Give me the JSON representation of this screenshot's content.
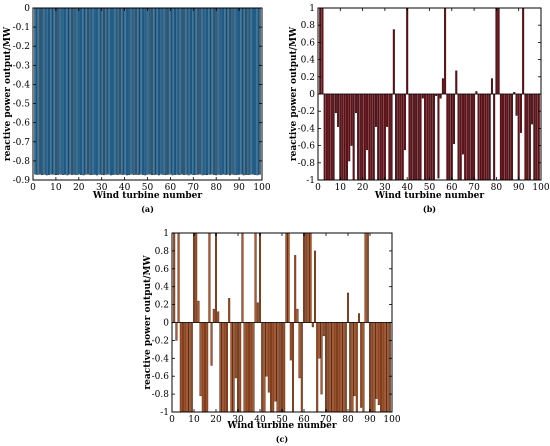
{
  "chart_data": [
    {
      "type": "bar",
      "panel_label": "(a)",
      "xlabel": "Wind turbine number",
      "ylabel": "reactive power output/MW",
      "xlim": [
        0,
        100
      ],
      "ylim": [
        -0.9,
        0
      ],
      "xticks": [
        0,
        10,
        20,
        30,
        40,
        50,
        60,
        70,
        80,
        90,
        100
      ],
      "yticks": [
        0,
        -0.1,
        -0.2,
        -0.3,
        -0.4,
        -0.5,
        -0.6,
        -0.7,
        -0.8,
        -0.9
      ],
      "bar_color": "#1f77b4",
      "bar_edge": "#000000",
      "x": [
        1,
        2,
        3,
        4,
        5,
        6,
        7,
        8,
        9,
        10,
        11,
        12,
        13,
        14,
        15,
        16,
        17,
        18,
        19,
        20,
        21,
        22,
        23,
        24,
        25,
        26,
        27,
        28,
        29,
        30,
        31,
        32,
        33,
        34,
        35,
        36,
        37,
        38,
        39,
        40,
        41,
        42,
        43,
        44,
        45,
        46,
        47,
        48,
        49,
        50,
        51,
        52,
        53,
        54,
        55,
        56,
        57,
        58,
        59,
        60,
        61,
        62,
        63,
        64,
        65,
        66,
        67,
        68,
        69,
        70,
        71,
        72,
        73,
        74,
        75,
        76,
        77,
        78,
        79,
        80,
        81,
        82,
        83,
        84,
        85,
        86,
        87,
        88,
        89,
        90,
        91,
        92,
        93,
        94,
        95,
        96,
        97,
        98,
        99
      ],
      "values": [
        -0.87,
        -0.872,
        -0.87,
        -0.873,
        -0.871,
        -0.874,
        -0.872,
        -0.87,
        -0.871,
        -0.873,
        -0.872,
        -0.87,
        -0.873,
        -0.871,
        -0.874,
        -0.87,
        -0.872,
        -0.871,
        -0.873,
        -0.87,
        -0.872,
        -0.874,
        -0.871,
        -0.87,
        -0.873,
        -0.872,
        -0.871,
        -0.874,
        -0.87,
        -0.872,
        -0.873,
        -0.871,
        -0.87,
        -0.874,
        -0.872,
        -0.871,
        -0.873,
        -0.87,
        -0.872,
        -0.871,
        -0.874,
        -0.873,
        -0.87,
        -0.872,
        -0.871,
        -0.873,
        -0.87,
        -0.872,
        -0.874,
        -0.871,
        -0.87,
        -0.873,
        -0.872,
        -0.871,
        -0.874,
        -0.87,
        -0.872,
        -0.873,
        -0.871,
        -0.87,
        -0.874,
        -0.872,
        -0.871,
        -0.873,
        -0.87,
        -0.872,
        -0.871,
        -0.874,
        -0.87,
        -0.873,
        -0.872,
        -0.871,
        -0.87,
        -0.874,
        -0.872,
        -0.873,
        -0.871,
        -0.87,
        -0.872,
        -0.874,
        -0.871,
        -0.873,
        -0.87,
        -0.872,
        -0.871,
        -0.874,
        -0.87,
        -0.873,
        -0.872,
        -0.871,
        -0.87,
        -0.874,
        -0.872,
        -0.873,
        -0.871,
        -0.87,
        -0.872,
        -0.874,
        -0.871
      ]
    },
    {
      "type": "bar",
      "panel_label": "(b)",
      "xlabel": "Wind turbine number",
      "ylabel": "reactive power output/MW",
      "xlim": [
        0,
        100
      ],
      "ylim": [
        -1,
        1
      ],
      "xticks": [
        0,
        10,
        20,
        30,
        40,
        50,
        60,
        70,
        80,
        90,
        100
      ],
      "yticks": [
        1,
        0.8,
        0.6,
        0.4,
        0.2,
        0,
        -0.2,
        -0.4,
        -0.6,
        -0.8,
        -1
      ],
      "bar_color": "#7a0a14",
      "bar_edge": "#000000",
      "x": [
        1,
        2,
        3,
        4,
        5,
        6,
        7,
        8,
        9,
        10,
        11,
        12,
        13,
        14,
        15,
        16,
        17,
        18,
        19,
        20,
        21,
        22,
        23,
        24,
        25,
        26,
        27,
        28,
        29,
        30,
        31,
        32,
        33,
        34,
        35,
        36,
        37,
        38,
        39,
        40,
        41,
        42,
        43,
        44,
        45,
        46,
        47,
        48,
        49,
        50,
        51,
        52,
        53,
        54,
        55,
        56,
        57,
        58,
        59,
        60,
        61,
        62,
        63,
        64,
        65,
        66,
        67,
        68,
        69,
        70,
        71,
        72,
        73,
        74,
        75,
        76,
        77,
        78,
        79,
        80,
        81,
        82,
        83,
        84,
        85,
        86,
        87,
        88,
        89,
        90,
        91,
        92,
        93,
        94,
        95,
        96,
        97,
        98,
        99
      ],
      "values": [
        1,
        1,
        -1,
        -1,
        -1,
        -1,
        -1,
        -0.22,
        -0.38,
        -1,
        -1,
        -1,
        -1,
        -0.78,
        -0.6,
        -1,
        -0.22,
        -1,
        -1,
        -1,
        -1,
        -0.65,
        -1,
        -1,
        -1,
        -0.38,
        -1,
        -1,
        -1,
        -1,
        -0.38,
        -1,
        -1,
        0.75,
        -1,
        -1,
        -1,
        -1,
        -0.65,
        1,
        -1,
        -1,
        -1,
        -1,
        -1,
        -1,
        -0.05,
        -1,
        -1,
        -1,
        -1,
        -1,
        -0.02,
        -0.98,
        -0.05,
        0.18,
        1,
        -1,
        -1,
        -1,
        -0.58,
        0.27,
        -1,
        -1,
        -0.7,
        -1,
        -1,
        -1,
        -1,
        -1,
        0.03,
        -1,
        -1,
        -1,
        -1,
        -1,
        -1,
        0.18,
        -1,
        1,
        1,
        -1,
        -1,
        -1,
        -1,
        -1,
        -1,
        0.02,
        -0.25,
        -1,
        -0.45,
        1,
        -1,
        -1,
        -1,
        -0.35,
        -1,
        -1,
        -1
      ]
    },
    {
      "type": "bar",
      "panel_label": "(c)",
      "xlabel": "Wind turbine number",
      "ylabel": "reactive power output/MW",
      "xlim": [
        0,
        100
      ],
      "ylim": [
        -1,
        1
      ],
      "xticks": [
        0,
        10,
        20,
        30,
        40,
        50,
        60,
        70,
        80,
        90,
        100
      ],
      "yticks": [
        1,
        0.8,
        0.6,
        0.4,
        0.2,
        0,
        -0.2,
        -0.4,
        -0.6,
        -0.8,
        -1
      ],
      "bar_color": "#c0521a",
      "bar_edge": "#000000",
      "x": [
        1,
        2,
        3,
        4,
        5,
        6,
        7,
        8,
        9,
        10,
        11,
        12,
        13,
        14,
        15,
        16,
        17,
        18,
        19,
        20,
        21,
        22,
        23,
        24,
        25,
        26,
        27,
        28,
        29,
        30,
        31,
        32,
        33,
        34,
        35,
        36,
        37,
        38,
        39,
        40,
        41,
        42,
        43,
        44,
        45,
        46,
        47,
        48,
        49,
        50,
        51,
        52,
        53,
        54,
        55,
        56,
        57,
        58,
        59,
        60,
        61,
        62,
        63,
        64,
        65,
        66,
        67,
        68,
        69,
        70,
        71,
        72,
        73,
        74,
        75,
        76,
        77,
        78,
        79,
        80,
        81,
        82,
        83,
        84,
        85,
        86,
        87,
        88,
        89,
        90,
        91,
        92,
        93,
        94,
        95,
        96,
        97,
        98,
        99
      ],
      "values": [
        1,
        -0.2,
        1,
        -1,
        -1,
        -1,
        -1,
        -1,
        -1,
        1,
        1,
        0.24,
        -0.82,
        -1,
        -1,
        -1,
        1,
        -0.48,
        0.15,
        1,
        0.12,
        -1,
        -1,
        -1,
        -1,
        0.27,
        -1,
        -1,
        -0.62,
        -1,
        -1,
        1,
        -1,
        -1,
        -1,
        -1,
        -1,
        1,
        0.22,
        1,
        -1,
        -1,
        -0.6,
        -0.78,
        -1,
        -1,
        -0.88,
        -1,
        -1,
        -1,
        -1,
        1,
        1,
        -0.42,
        -1,
        0.75,
        0.15,
        -0.62,
        -1,
        1,
        1,
        1,
        1,
        -0.05,
        0.8,
        -1,
        -0.4,
        -0.8,
        -0.15,
        -1,
        -1,
        -1,
        -1,
        -1,
        -1,
        -1,
        -1,
        -1,
        -1,
        0.33,
        -1,
        -1,
        -0.82,
        -1,
        0.1,
        -0.95,
        -1,
        1,
        1,
        -1,
        -1,
        -1,
        -0.85,
        -0.92,
        -1,
        -1,
        -1,
        -1,
        -1
      ]
    }
  ]
}
